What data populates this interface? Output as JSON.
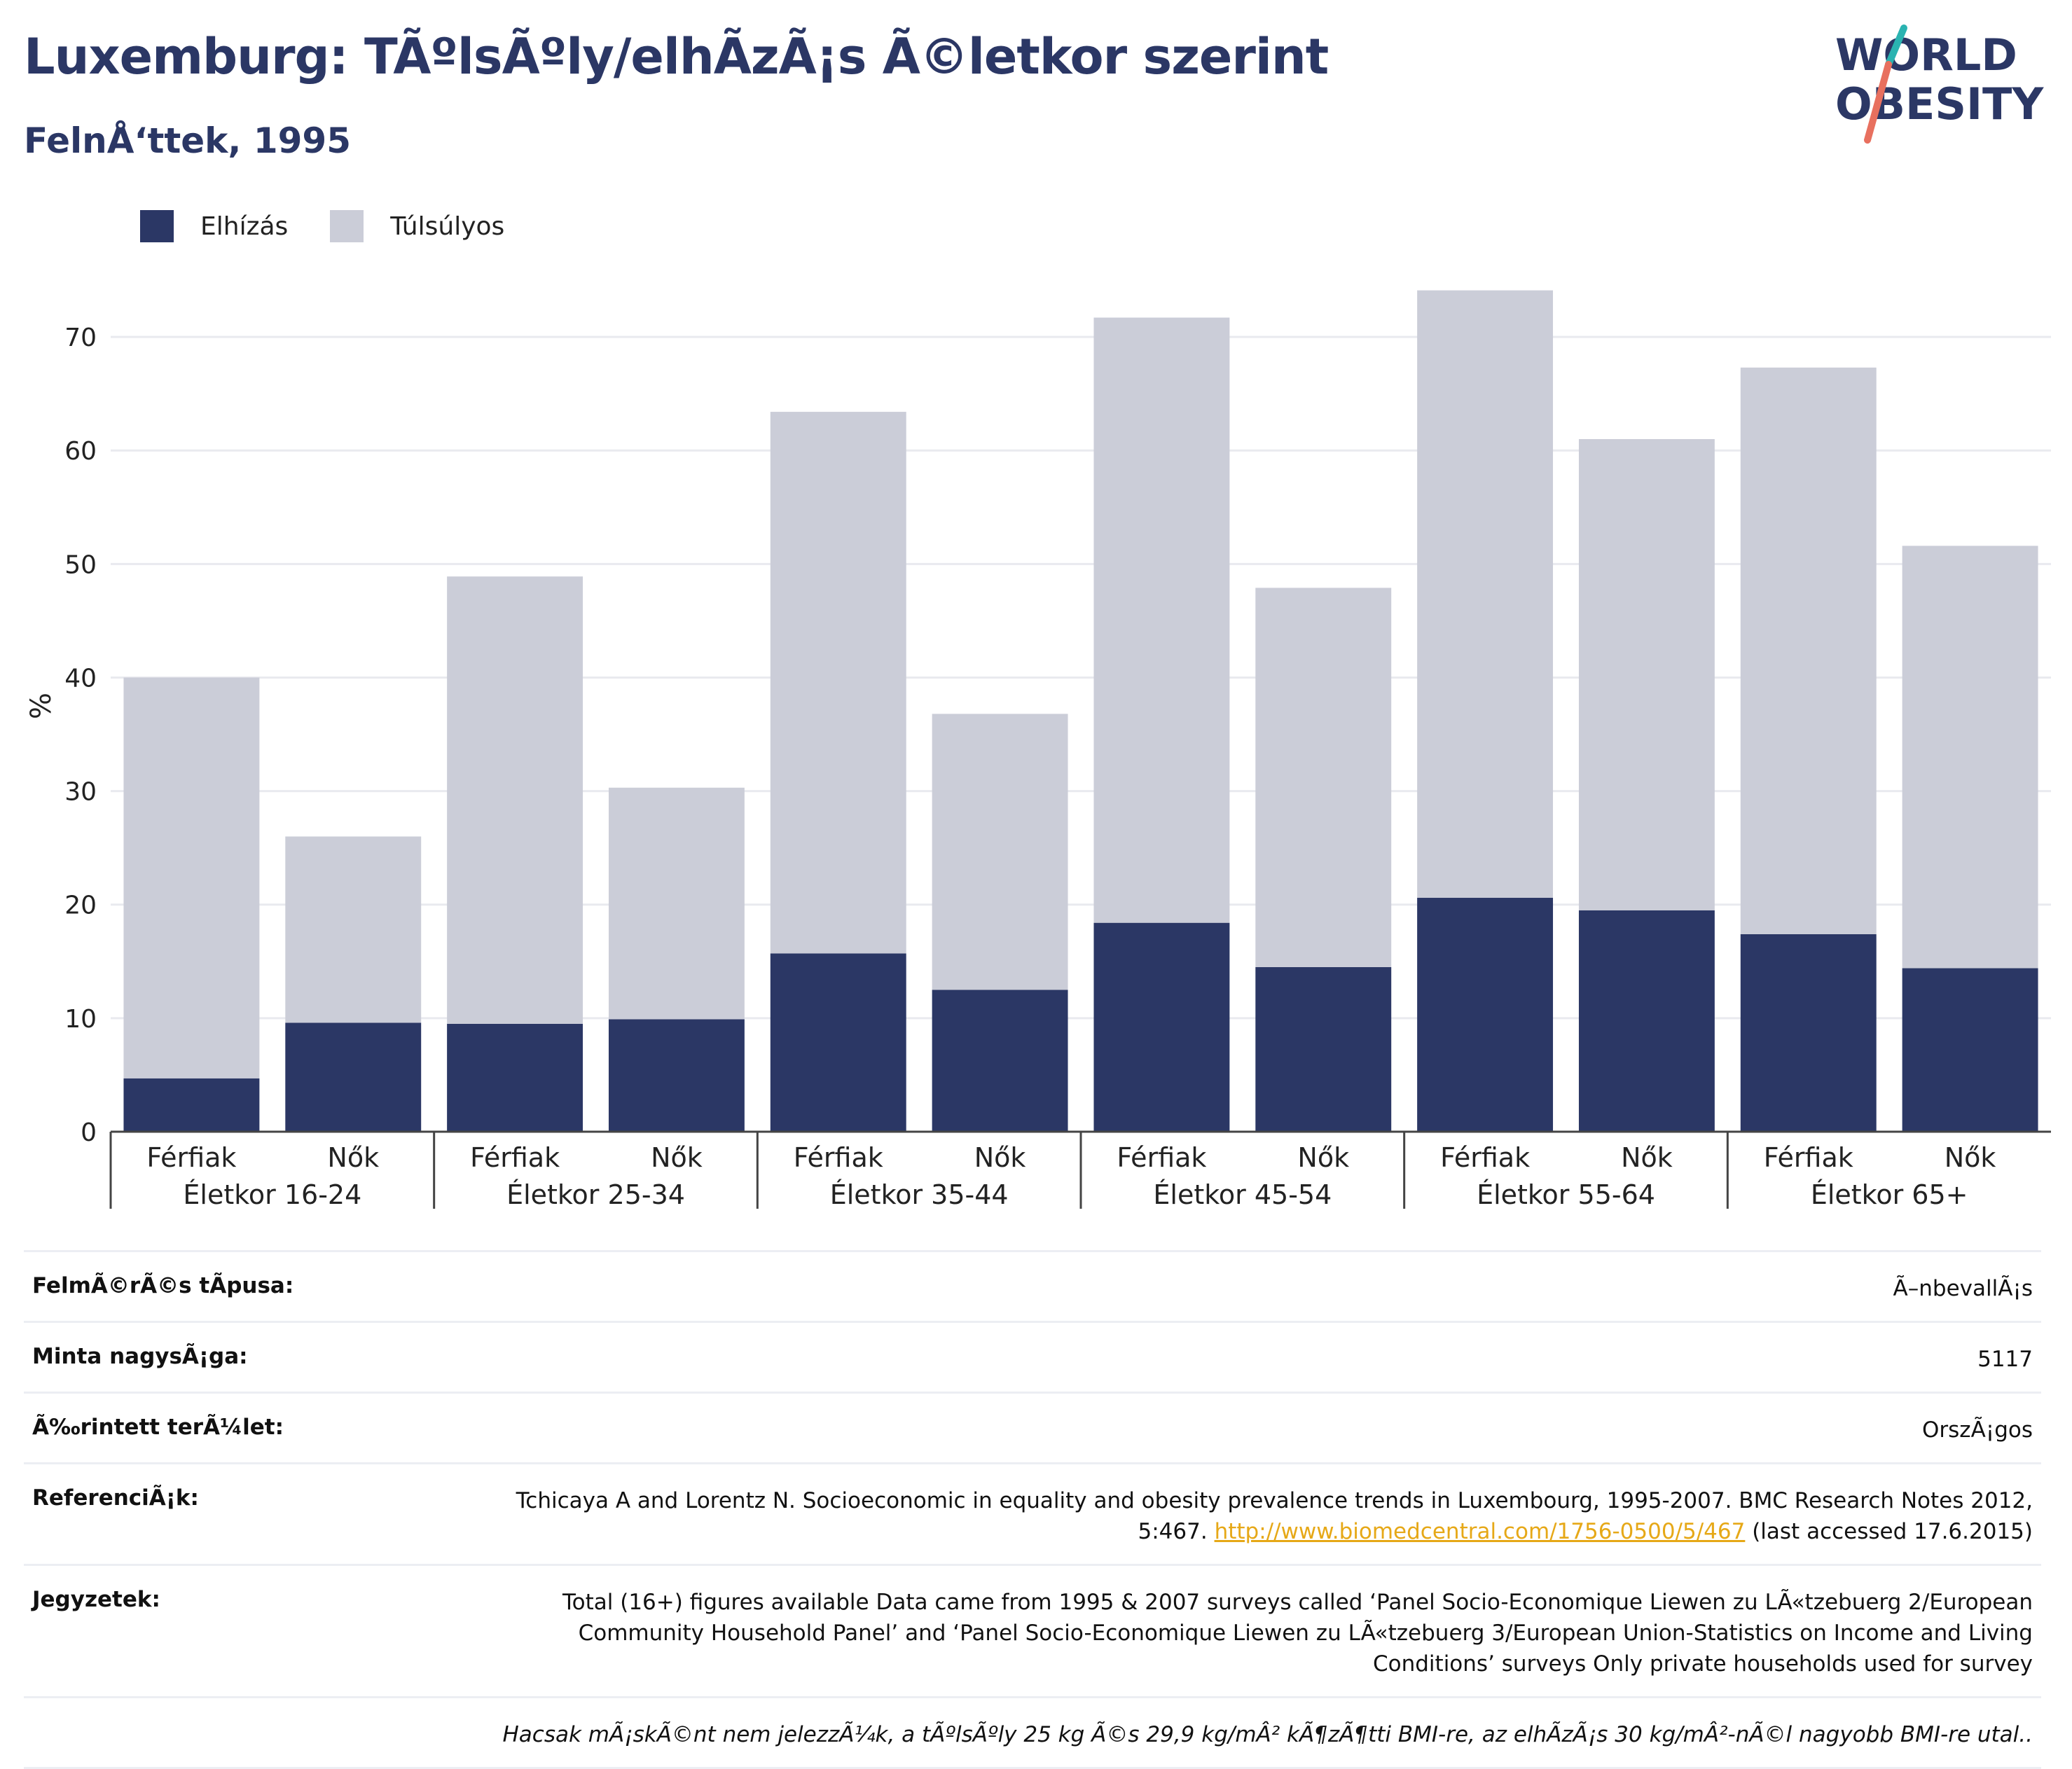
{
  "header": {
    "title": "Luxemburg: TÃºlsÃºly/elhÃzÃ¡s Ã©letkor szerint",
    "subtitle": "FelnÅ‘ttek, 1995"
  },
  "logo": {
    "line1": "WORLD",
    "line2": "OBESITY"
  },
  "legend": [
    {
      "label": "Elhízás",
      "color": "#2b3765"
    },
    {
      "label": "Túlsúlyos",
      "color": "#cbcdd8"
    }
  ],
  "chart_data": {
    "type": "bar",
    "stacked": true,
    "ylabel": "%",
    "ylim": [
      0,
      75
    ],
    "yticks": [
      0,
      10,
      20,
      30,
      40,
      50,
      60,
      70
    ],
    "grid": true,
    "legend_position": "top-left",
    "groups": [
      "Életkor 16-24",
      "Életkor 25-34",
      "Életkor 35-44",
      "Életkor 45-54",
      "Életkor 55-64",
      "Életkor 65+"
    ],
    "categories": [
      "Férfiak",
      "Nők",
      "Férfiak",
      "Nők",
      "Férfiak",
      "Nők",
      "Férfiak",
      "Nők",
      "Férfiak",
      "Nők",
      "Férfiak",
      "Nők"
    ],
    "series": [
      {
        "name": "Elhízás",
        "color": "#2b3765",
        "values": [
          4.7,
          9.6,
          9.5,
          9.9,
          15.7,
          12.5,
          18.4,
          14.5,
          20.6,
          19.5,
          17.4,
          14.4
        ]
      },
      {
        "name": "Túlsúlyos",
        "color": "#cbcdd8",
        "values": [
          35.3,
          16.4,
          39.4,
          20.4,
          47.7,
          24.3,
          53.3,
          33.4,
          53.5,
          41.5,
          49.9,
          37.2
        ]
      }
    ]
  },
  "meta": {
    "survey_type": {
      "key": "FelmÃ©rÃ©s tÃpusa:",
      "value": "Ã–nbevallÃ¡s"
    },
    "sample_size": {
      "key": "Minta nagysÃ¡ga:",
      "value": "5117"
    },
    "area": {
      "key": "Ã‰rintett terÃ¼let:",
      "value": "OrszÃ¡gos"
    },
    "references": {
      "key": "ReferenciÃ¡k:",
      "text_before": "Tchicaya A and Lorentz N. Socioeconomic in equality and obesity prevalence trends in Luxembourg, 1995-2007. BMC Research Notes 2012, 5:467.",
      "link": "http://www.biomedcentral.com/1756-0500/5/467",
      "text_after": "(last accessed 17.6.2015)"
    },
    "notes": {
      "key": "Jegyzetek:",
      "value": "Total (16+) figures available Data came from 1995 & 2007 surveys called ‘Panel Socio-Economique Liewen zu LÃ«tzebuerg 2/European Community Household Panel’ and ‘Panel Socio-Economique Liewen zu LÃ«tzebuerg 3/European Union-Statistics on Income and Living Conditions’ surveys Only private households used for survey"
    },
    "footnote": "Hacsak mÃ¡skÃ©nt nem jelezzÃ¼k, a tÃºlsÃºly 25 kg Ã©s 29,9 kg/mÂ² kÃ¶zÃ¶tti BMI-re, az elhÃzÃ¡s 30 kg/mÂ²-nÃ©l nagyobb BMI-re utal.."
  }
}
